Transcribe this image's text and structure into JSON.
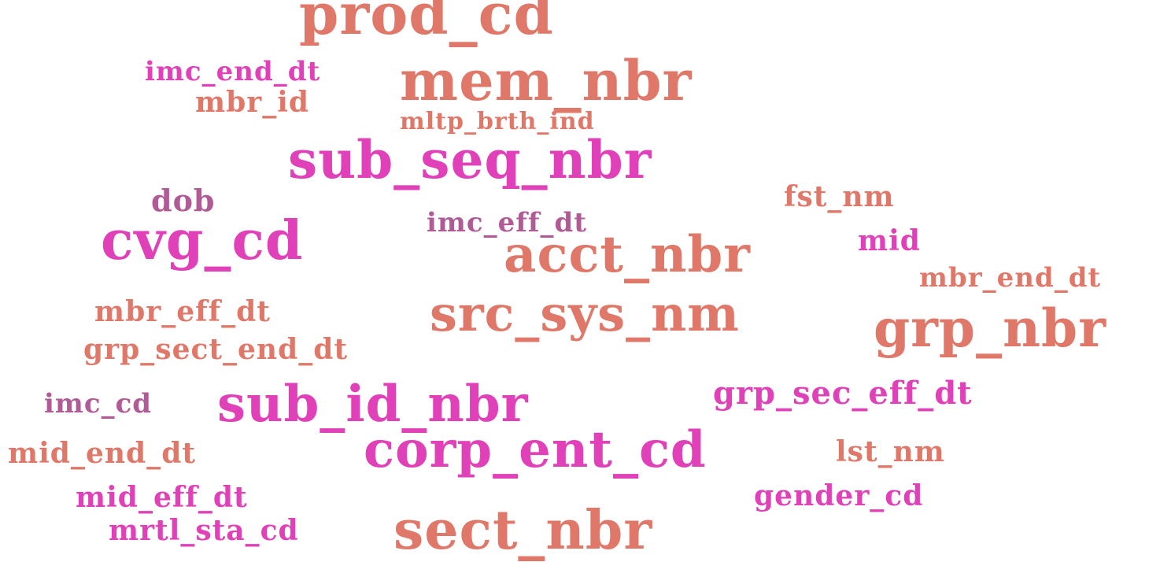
{
  "palette": {
    "salmon": "#e0786a",
    "magenta": "#e040b8",
    "plum": "#b05a96"
  },
  "words": [
    {
      "text": "prod_cd",
      "color": "salmon"
    },
    {
      "text": "imc_end_dt",
      "color": "magenta"
    },
    {
      "text": "mem_nbr",
      "color": "salmon"
    },
    {
      "text": "mbr_id",
      "color": "salmon"
    },
    {
      "text": "mltp_brth_ind",
      "color": "salmon"
    },
    {
      "text": "sub_seq_nbr",
      "color": "magenta"
    },
    {
      "text": "dob",
      "color": "plum"
    },
    {
      "text": "fst_nm",
      "color": "salmon"
    },
    {
      "text": "imc_eff_dt",
      "color": "plum"
    },
    {
      "text": "cvg_cd",
      "color": "magenta"
    },
    {
      "text": "mid",
      "color": "magenta"
    },
    {
      "text": "acct_nbr",
      "color": "salmon"
    },
    {
      "text": "mbr_end_dt",
      "color": "salmon"
    },
    {
      "text": "mbr_eff_dt",
      "color": "salmon"
    },
    {
      "text": "src_sys_nm",
      "color": "salmon"
    },
    {
      "text": "grp_nbr",
      "color": "salmon"
    },
    {
      "text": "grp_sect_end_dt",
      "color": "salmon"
    },
    {
      "text": "grp_sec_eff_dt",
      "color": "magenta"
    },
    {
      "text": "imc_cd",
      "color": "plum"
    },
    {
      "text": "sub_id_nbr",
      "color": "magenta"
    },
    {
      "text": "corp_ent_cd",
      "color": "magenta"
    },
    {
      "text": "lst_nm",
      "color": "salmon"
    },
    {
      "text": "mid_end_dt",
      "color": "salmon"
    },
    {
      "text": "gender_cd",
      "color": "magenta"
    },
    {
      "text": "mid_eff_dt",
      "color": "magenta"
    },
    {
      "text": "mrtl_sta_cd",
      "color": "magenta"
    },
    {
      "text": "sect_nbr",
      "color": "salmon"
    }
  ]
}
